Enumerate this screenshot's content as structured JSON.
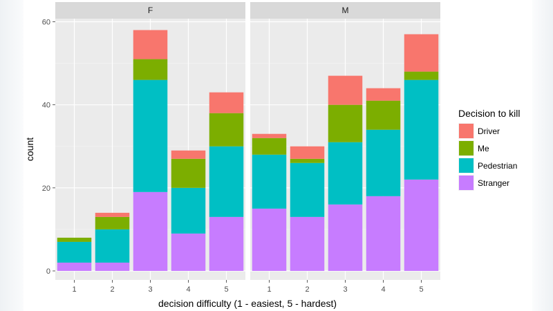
{
  "chart_data": {
    "type": "bar",
    "stacked": true,
    "facets": [
      "F",
      "M"
    ],
    "categories": [
      "1",
      "2",
      "3",
      "4",
      "5"
    ],
    "xlabel": "decision difficulty (1 - easiest, 5 - hardest)",
    "ylabel": "count",
    "ylim": [
      0,
      60
    ],
    "yticks": [
      0,
      20,
      40,
      60
    ],
    "legend": {
      "title": "Decision to kill",
      "position": "right",
      "entries": [
        {
          "name": "Driver",
          "color": "#F8766D"
        },
        {
          "name": "Me",
          "color": "#7CAE00"
        },
        {
          "name": "Pedestrian",
          "color": "#00BFC4"
        },
        {
          "name": "Stranger",
          "color": "#C77CFF"
        }
      ]
    },
    "stack_order_bottom_to_top": [
      "Stranger",
      "Pedestrian",
      "Me",
      "Driver"
    ],
    "series": {
      "F": [
        {
          "name": "Driver",
          "values": [
            0,
            1,
            7,
            2,
            5
          ]
        },
        {
          "name": "Me",
          "values": [
            1,
            3,
            5,
            7,
            8
          ]
        },
        {
          "name": "Pedestrian",
          "values": [
            5,
            8,
            27,
            11,
            17
          ]
        },
        {
          "name": "Stranger",
          "values": [
            2,
            2,
            19,
            9,
            13
          ]
        }
      ],
      "M": [
        {
          "name": "Driver",
          "values": [
            1,
            3,
            7,
            3,
            9
          ]
        },
        {
          "name": "Me",
          "values": [
            4,
            1,
            9,
            7,
            2
          ]
        },
        {
          "name": "Pedestrian",
          "values": [
            13,
            13,
            15,
            16,
            24
          ]
        },
        {
          "name": "Stranger",
          "values": [
            15,
            13,
            16,
            18,
            22
          ]
        }
      ]
    }
  }
}
